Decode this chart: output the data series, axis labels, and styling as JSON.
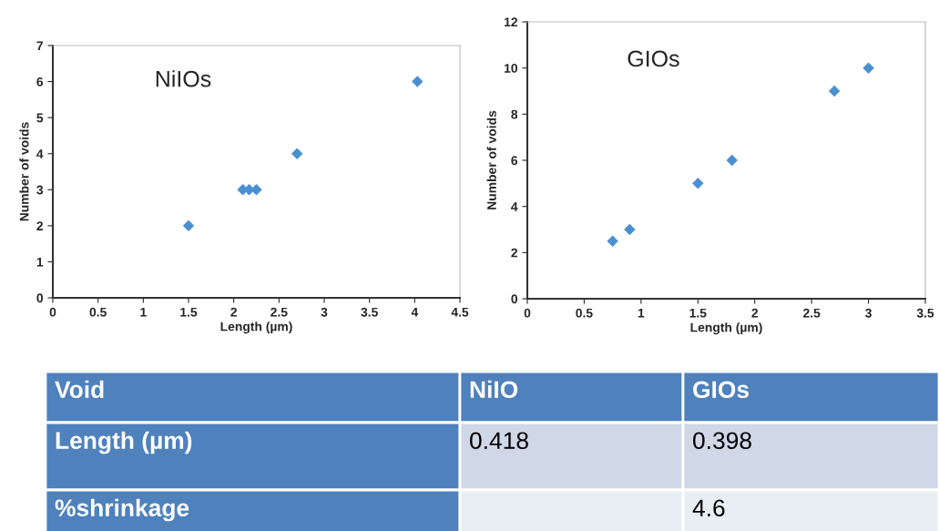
{
  "chart_data": [
    {
      "type": "scatter",
      "xlabel": "Length (µm)",
      "ylabel": "Number of voids",
      "annotations": [
        "NiIOs"
      ],
      "marker": "diamond",
      "grid": false,
      "xlim": [
        0,
        4.5
      ],
      "xticks": [
        0,
        0.5,
        1,
        1.5,
        2,
        2.5,
        3,
        3.5,
        4,
        4.5
      ],
      "ylim": [
        0,
        7
      ],
      "yticks": [
        0,
        1,
        2,
        3,
        4,
        5,
        6,
        7
      ],
      "series": [
        {
          "color": "#4a90d0",
          "x": [
            1.5,
            2.1,
            2.17,
            2.25,
            2.7,
            4.03
          ],
          "values": [
            2,
            3,
            3,
            3,
            4,
            6
          ]
        }
      ]
    },
    {
      "type": "scatter",
      "xlabel": "Length (µm)",
      "ylabel": "Number of voids",
      "annotations": [
        "GIOs"
      ],
      "marker": "diamond",
      "grid": false,
      "xlim": [
        0,
        3.5
      ],
      "xticks": [
        0,
        0.5,
        1,
        1.5,
        2,
        2.5,
        3,
        3.5
      ],
      "ylim": [
        0,
        12
      ],
      "yticks": [
        0,
        2,
        4,
        6,
        8,
        10,
        12
      ],
      "series": [
        {
          "color": "#4a90d0",
          "x": [
            0.75,
            0.9,
            1.5,
            1.8,
            2.7,
            3.0
          ],
          "values": [
            2.5,
            3,
            5,
            6,
            9,
            10
          ]
        }
      ]
    },
    {
      "type": "other",
      "annotations": [
        "Void",
        "NiIO",
        "GIOs",
        "Length (µm)",
        "0.418",
        "0.398",
        "%shrinkage",
        null,
        "4.6"
      ]
    }
  ]
}
